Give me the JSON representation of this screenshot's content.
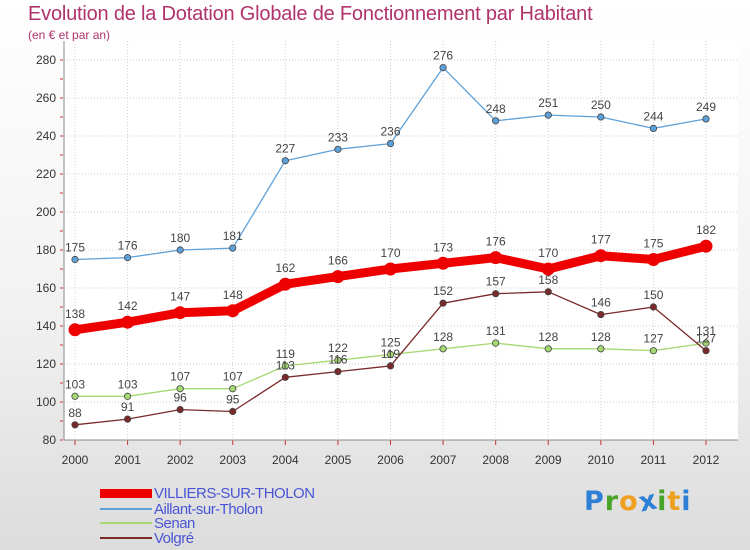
{
  "title": "Evolution de la Dotation Globale de Fonctionnement par Habitant",
  "subtitle": "(en € et par an)",
  "logo": {
    "text": "Proxiti",
    "letters": [
      "P",
      "r",
      "o",
      "x",
      "i",
      "t",
      "i"
    ],
    "letter_colors": [
      "#2e7fd6",
      "#4aa329",
      "#f0a020",
      "#2e7fd6",
      "#4aa329",
      "#f0a020",
      "#2e7fd6"
    ]
  },
  "chart_data": {
    "type": "line",
    "title": "Evolution de la Dotation Globale de Fonctionnement par Habitant",
    "subtitle": "(en € et par an)",
    "x": [
      "2000",
      "2001",
      "2002",
      "2003",
      "2004",
      "2005",
      "2006",
      "2007",
      "2008",
      "2009",
      "2010",
      "2011",
      "2012"
    ],
    "ylim": [
      80,
      280
    ],
    "yticks": [
      80,
      100,
      120,
      140,
      160,
      180,
      200,
      220,
      240,
      260,
      280
    ],
    "grid": true,
    "legend_position": "bottom-left",
    "series": [
      {
        "name": "VILLIERS-SUR-THOLON",
        "color": "#ee0000",
        "emphasis": true,
        "values": [
          138,
          142,
          147,
          148,
          162,
          166,
          170,
          173,
          176,
          170,
          177,
          175,
          182
        ]
      },
      {
        "name": "Aillant-sur-Tholon",
        "color": "#5ea0d8",
        "values": [
          175,
          176,
          180,
          181,
          227,
          233,
          236,
          276,
          248,
          251,
          250,
          244,
          249
        ]
      },
      {
        "name": "Senan",
        "color": "#a6d873",
        "values": [
          103,
          103,
          107,
          107,
          119,
          122,
          125,
          128,
          131,
          128,
          128,
          127,
          131
        ]
      },
      {
        "name": "Volgré",
        "color": "#7a2a2a",
        "values": [
          88,
          91,
          96,
          95,
          113,
          116,
          119,
          152,
          157,
          158,
          146,
          150,
          127
        ]
      }
    ]
  }
}
